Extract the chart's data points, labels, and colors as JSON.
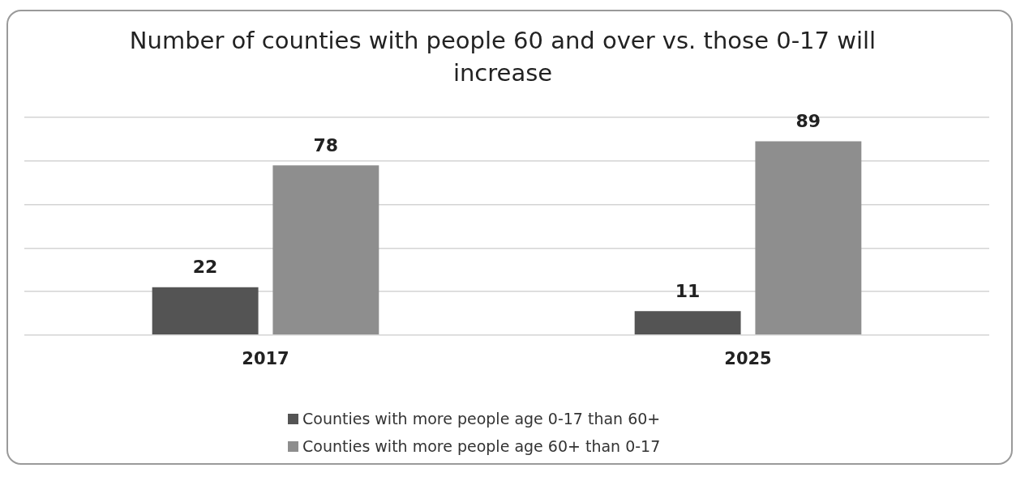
{
  "chart_data": {
    "type": "bar",
    "title": "Number of counties with people 60 and over vs. those 0-17 will increase",
    "categories": [
      "2017",
      "2025"
    ],
    "series": [
      {
        "name": "Counties with more people age 0-17 than 60+",
        "color": "#545454",
        "values": [
          22,
          11
        ]
      },
      {
        "name": "Counties with more people age 60+ than 0-17",
        "color": "#8e8e8e",
        "values": [
          78,
          89
        ]
      }
    ],
    "ylim": [
      0,
      100
    ],
    "yticks": [
      {
        "value": 0,
        "label": null
      },
      {
        "value": 20,
        "label": null
      },
      {
        "value": 40,
        "label": null
      },
      {
        "value": 60,
        "label": null
      },
      {
        "value": 80,
        "label": null
      },
      {
        "value": 100,
        "label": null
      }
    ],
    "tick_labels": "x",
    "grid": "y",
    "legend": "bottom",
    "data_labels": true
  }
}
